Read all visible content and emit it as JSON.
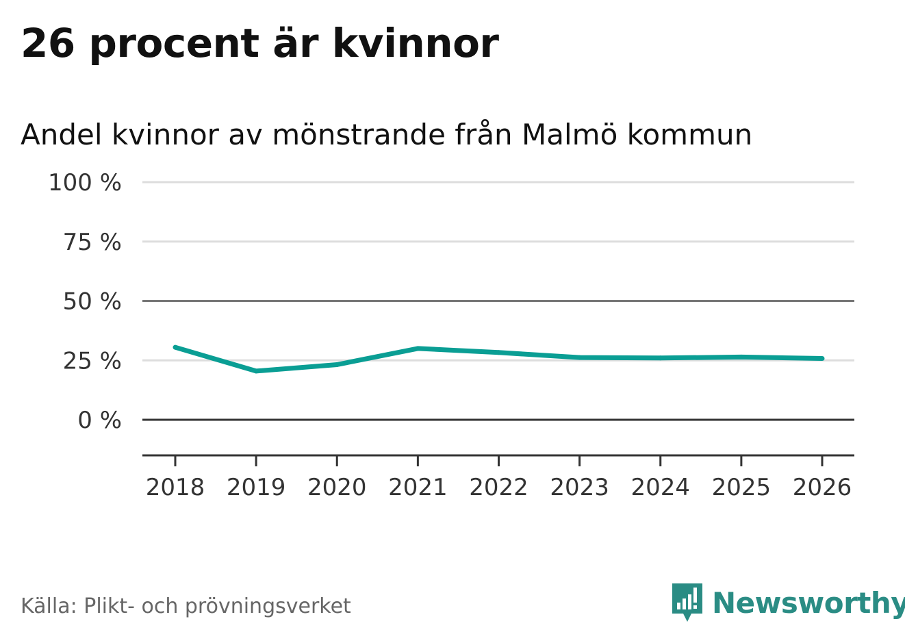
{
  "header": {
    "title": "26 procent är kvinnor"
  },
  "chart_data": {
    "type": "line",
    "title": "26 procent är kvinnor",
    "subtitle": "Andel kvinnor av mönstrande från Malmö kommun",
    "xlabel": "",
    "ylabel": "",
    "categories": [
      "2018",
      "2019",
      "2020",
      "2021",
      "2022",
      "2023",
      "2024",
      "2025",
      "2026"
    ],
    "series": [
      {
        "name": "Andel kvinnor",
        "values": [
          30.5,
          20.5,
          23.2,
          30.0,
          28.3,
          26.2,
          26.0,
          26.4,
          25.8
        ]
      }
    ],
    "y_ticks": [
      0,
      25,
      50,
      75,
      100
    ],
    "y_tick_labels": [
      "0 %",
      "25 %",
      "50 %",
      "75 %",
      "100 %"
    ],
    "ylim": [
      -15,
      100
    ],
    "grid": true,
    "line_color": "#0a9e94"
  },
  "footer": {
    "source": "Källa: Plikt- och prövningsverket",
    "brand": "Newsworthy",
    "brand_icon": "newsworthy-logo-icon",
    "brand_color": "#2a8c84"
  }
}
